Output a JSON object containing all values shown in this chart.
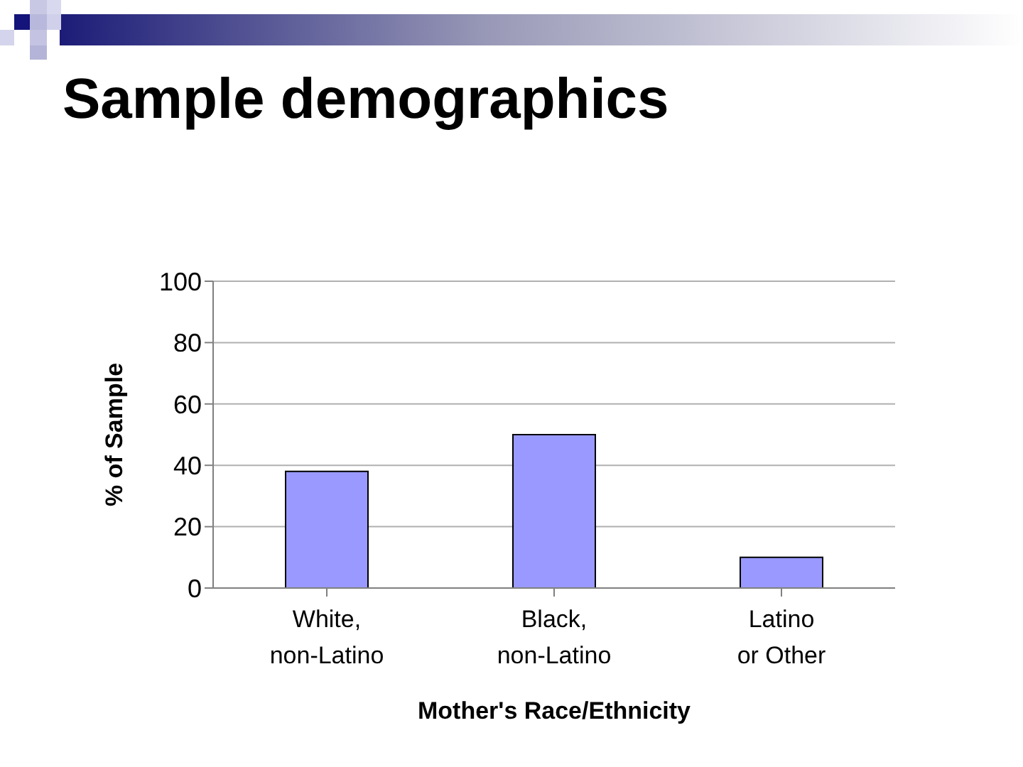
{
  "chart_data": {
    "type": "bar",
    "title": "Sample demographics",
    "xlabel": "Mother's Race/Ethnicity",
    "ylabel": "% of Sample",
    "categories": [
      "White, non-Latino",
      "Black, non-Latino",
      "Latino or Other"
    ],
    "values": [
      38,
      50,
      10
    ],
    "color": "#9999ff",
    "ylim": [
      0,
      100
    ],
    "yticks": [
      0,
      20,
      40,
      60,
      80,
      100
    ],
    "grid": "y"
  }
}
